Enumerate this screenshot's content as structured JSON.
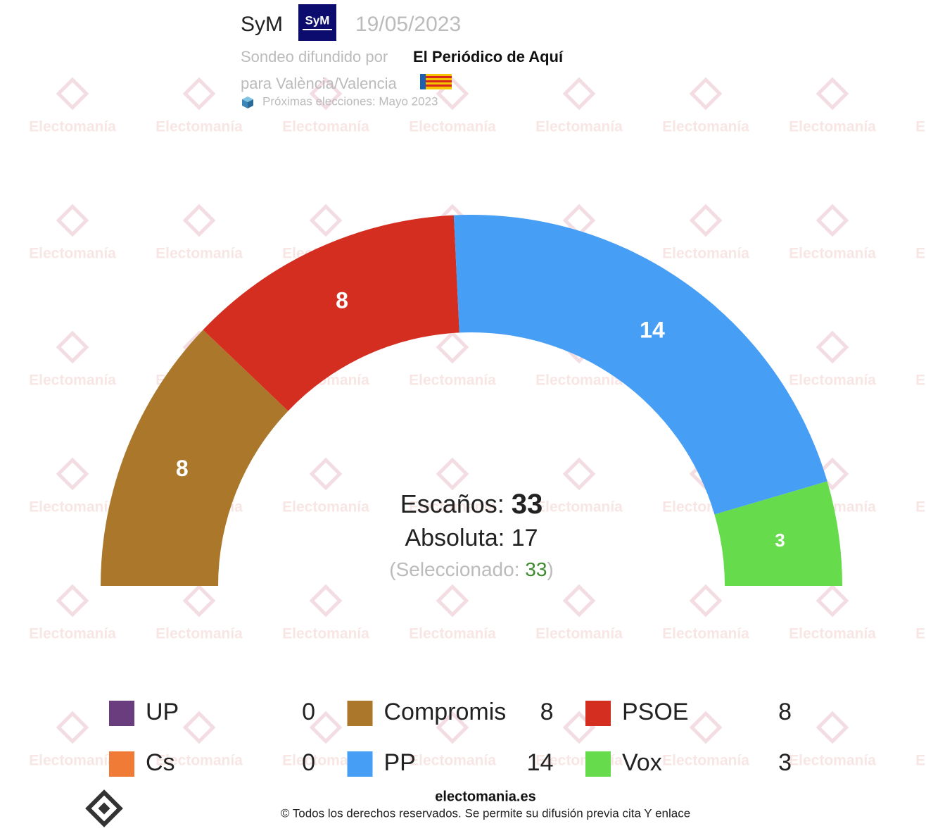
{
  "header": {
    "pollster": "SyM",
    "logo": "SyM",
    "date": "19/05/2023",
    "spread_by": "Sondeo difundido por",
    "media": "El Periódico de Aquí",
    "region": "para València/Valencia",
    "next_election": "Próximas elecciones: Mayo 2023"
  },
  "watermark": "Electomanía",
  "chart_data": {
    "type": "semicircle",
    "categories": [
      "UP",
      "Compromis",
      "PSOE",
      "Cs",
      "PP",
      "Vox"
    ],
    "values": [
      0,
      8,
      8,
      0,
      14,
      3
    ],
    "colors": [
      "#6a3d7f",
      "#ab772b",
      "#d42e21",
      "#ef7b36",
      "#479ef5",
      "#66db4c"
    ],
    "total_label": "Escaños:",
    "total": 33,
    "majority_label": "Absoluta:",
    "majority": 17,
    "selected_label": "(Seleccionado:",
    "selected": 33,
    "selected_close": ")"
  },
  "footer": {
    "site": "electomania.es",
    "copyright": "© Todos los derechos reservados. Se permite su difusión previa cita Y enlace"
  }
}
